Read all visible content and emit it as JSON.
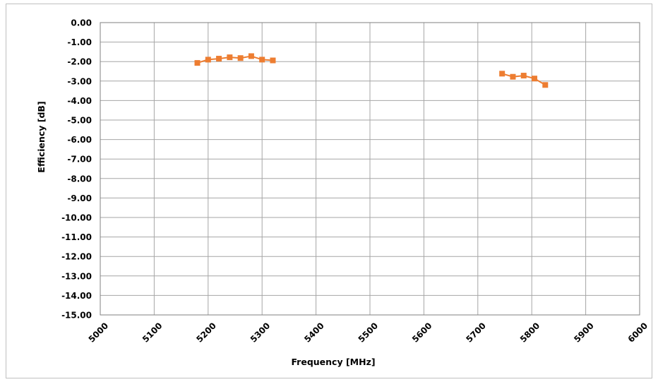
{
  "chart_data": {
    "type": "line",
    "title": "",
    "xlabel": "Frequency [MHz]",
    "ylabel": "Efficiency [dB]",
    "xlim": [
      5000,
      6000
    ],
    "ylim": [
      -15,
      0
    ],
    "x_ticks": [
      "5000",
      "5100",
      "5200",
      "5300",
      "5400",
      "5500",
      "5600",
      "5700",
      "5800",
      "5900",
      "6000"
    ],
    "y_ticks": [
      "0.00",
      "-1.00",
      "-2.00",
      "-3.00",
      "-4.00",
      "-5.00",
      "-6.00",
      "-7.00",
      "-8.00",
      "-9.00",
      "-10.00",
      "-11.00",
      "-12.00",
      "-13.00",
      "-14.00",
      "-15.00"
    ],
    "grid": true,
    "legend": "none",
    "series": [
      {
        "color": "#ED7D31",
        "marker": "square",
        "points": [
          [
            5180,
            -2.07
          ],
          [
            5200,
            -1.9
          ],
          [
            5220,
            -1.85
          ],
          [
            5240,
            -1.78
          ],
          [
            5260,
            -1.82
          ],
          [
            5280,
            -1.72
          ],
          [
            5300,
            -1.9
          ],
          [
            5320,
            -1.94
          ]
        ]
      },
      {
        "color": "#ED7D31",
        "marker": "square",
        "points": [
          [
            5745,
            -2.62
          ],
          [
            5765,
            -2.78
          ],
          [
            5785,
            -2.72
          ],
          [
            5805,
            -2.87
          ],
          [
            5825,
            -3.2
          ]
        ]
      }
    ]
  }
}
